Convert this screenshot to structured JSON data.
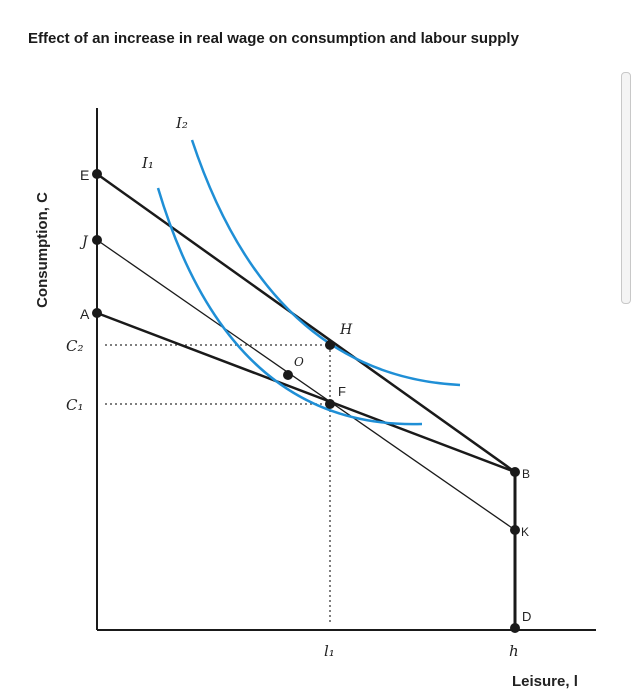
{
  "title": "Effect of an increase in real wage on consumption and labour supply",
  "axes": {
    "y_label": "Consumption, C",
    "x_label": "Leisure, l"
  },
  "curve_labels": {
    "i1": "I₁",
    "i2": "I₂"
  },
  "points": {
    "E": "E",
    "J": "J",
    "A": "A",
    "H": "H",
    "O": "O",
    "F": "F",
    "B": "B",
    "K": "K",
    "D": "D"
  },
  "axis_marks": {
    "c2": "C₂",
    "c1": "C₁",
    "l1": "l₁",
    "h": "h"
  },
  "colors": {
    "indifference_curve": "#1f8fd6",
    "budget_line": "#1a1a1a",
    "guide": "#555555"
  }
}
